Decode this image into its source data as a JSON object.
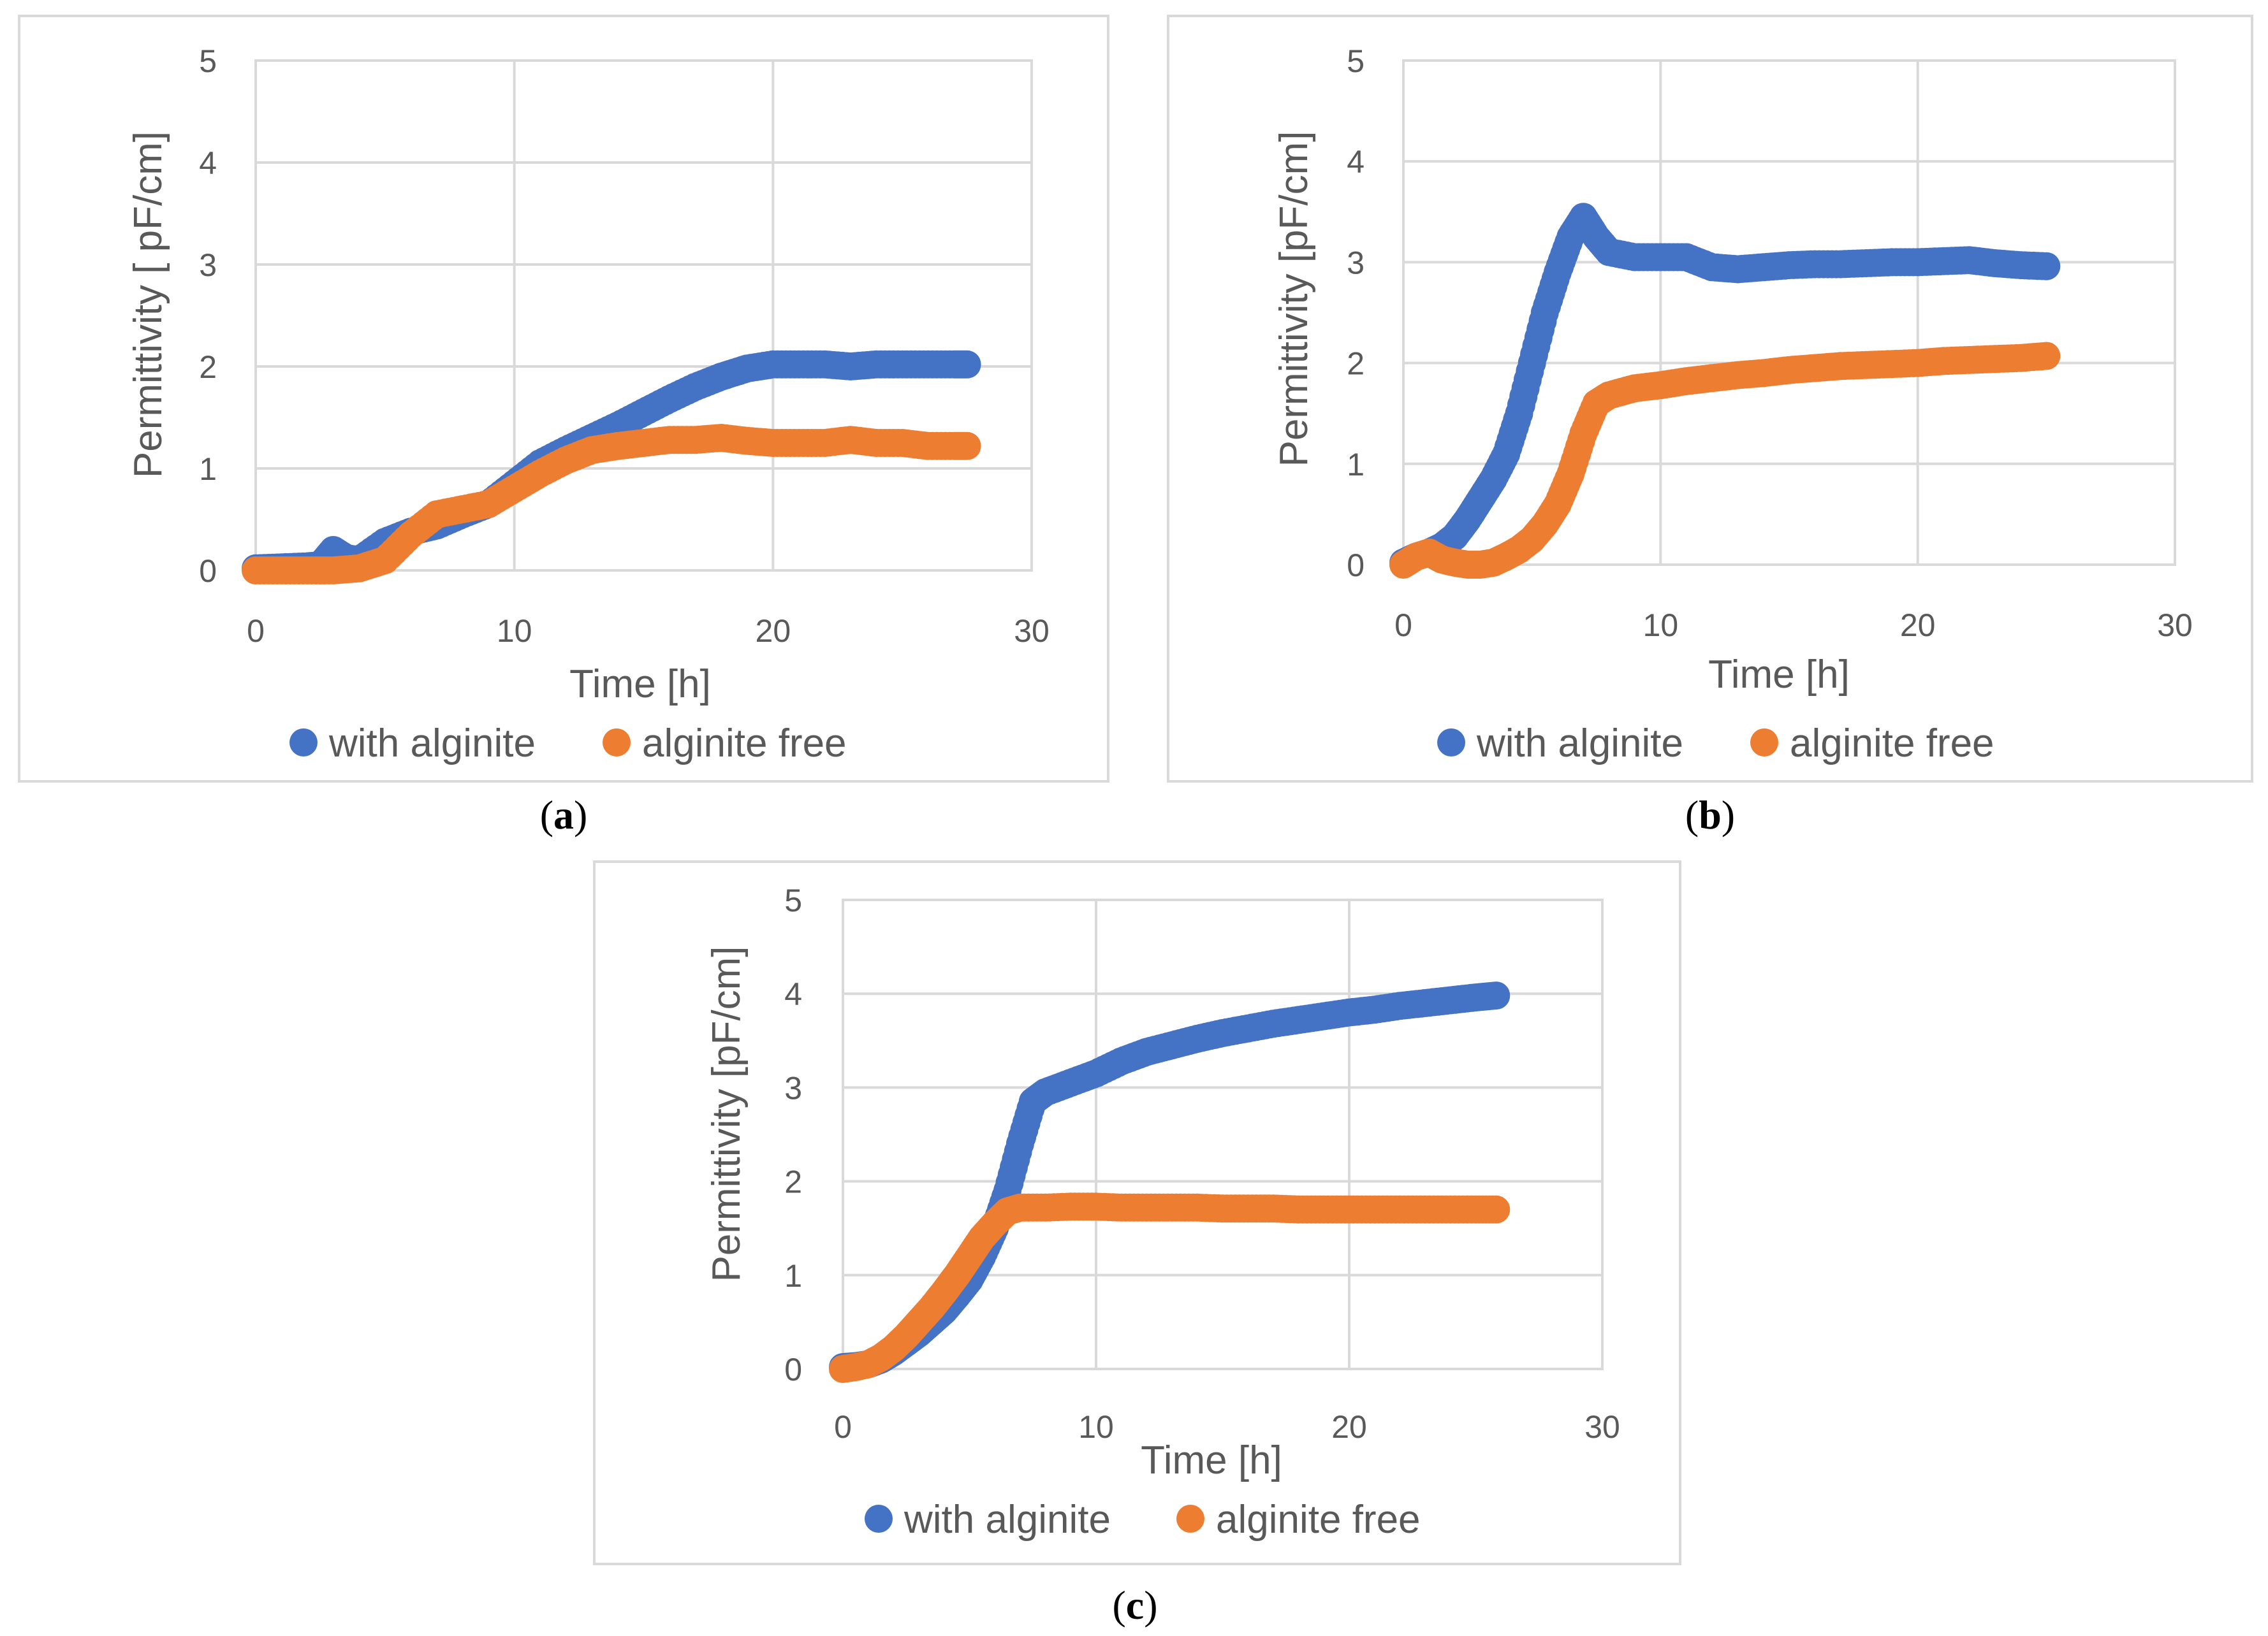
{
  "colors": {
    "with": "#4472C4",
    "free": "#ED7D31",
    "text": "#595959",
    "grid": "#D9D9D9"
  },
  "chart_data": [
    {
      "type": "scatter",
      "panel": "a",
      "caption_letter": "a",
      "xlabel": "Time [h]",
      "ylabel": "Permittivity [ pF/cm]",
      "xlim": [
        0,
        30
      ],
      "ylim": [
        0,
        5
      ],
      "xticks": [
        "0",
        "10",
        "20",
        "30"
      ],
      "yticks": [
        "0",
        "1",
        "2",
        "3",
        "4",
        "5"
      ],
      "legend_position": "bottom",
      "series": [
        {
          "name": "with alginite",
          "color": "#4472C4",
          "x": [
            0,
            1,
            2,
            2.5,
            3,
            3.5,
            4,
            5,
            6,
            7,
            8,
            9,
            10,
            11,
            12,
            13,
            14,
            15,
            16,
            17,
            18,
            19,
            20,
            21,
            22,
            23,
            24,
            25,
            26,
            27,
            27.5
          ],
          "y": [
            0.02,
            0.03,
            0.04,
            0.05,
            0.2,
            0.12,
            0.1,
            0.28,
            0.38,
            0.44,
            0.55,
            0.65,
            0.85,
            1.05,
            1.18,
            1.3,
            1.42,
            1.55,
            1.68,
            1.8,
            1.9,
            1.98,
            2.02,
            2.02,
            2.02,
            2.0,
            2.02,
            2.02,
            2.02,
            2.02,
            2.02
          ]
        },
        {
          "name": "alginite free",
          "color": "#ED7D31",
          "x": [
            0,
            1,
            2,
            3,
            4,
            5,
            6,
            7,
            8,
            9,
            10,
            11,
            12,
            13,
            14,
            15,
            16,
            17,
            18,
            19,
            20,
            21,
            22,
            23,
            24,
            25,
            26,
            27,
            27.5
          ],
          "y": [
            0,
            0,
            0,
            0,
            0.02,
            0.1,
            0.35,
            0.55,
            0.6,
            0.65,
            0.8,
            0.95,
            1.08,
            1.18,
            1.22,
            1.25,
            1.28,
            1.28,
            1.3,
            1.27,
            1.25,
            1.25,
            1.25,
            1.28,
            1.25,
            1.25,
            1.22,
            1.22,
            1.22
          ]
        }
      ]
    },
    {
      "type": "scatter",
      "panel": "b",
      "caption_letter": "b",
      "xlabel": "Time [h]",
      "ylabel": "Permittivity [pF/cm]",
      "xlim": [
        0,
        30
      ],
      "ylim": [
        0,
        5
      ],
      "xticks": [
        "0",
        "10",
        "20",
        "30"
      ],
      "yticks": [
        "0",
        "1",
        "2",
        "3",
        "4",
        "5"
      ],
      "legend_position": "bottom",
      "series": [
        {
          "name": "with alginite",
          "color": "#4472C4",
          "x": [
            0,
            0.5,
            1,
            1.5,
            2,
            2.5,
            3,
            3.5,
            4,
            4.5,
            5,
            5.5,
            6,
            6.5,
            7,
            7.5,
            8,
            9,
            10,
            11,
            12,
            13,
            14,
            15,
            16,
            17,
            18,
            19,
            20,
            21,
            22,
            23,
            24,
            25
          ],
          "y": [
            0.02,
            0.08,
            0.12,
            0.18,
            0.28,
            0.45,
            0.65,
            0.85,
            1.1,
            1.5,
            2.0,
            2.5,
            2.9,
            3.25,
            3.45,
            3.25,
            3.1,
            3.05,
            3.05,
            3.05,
            2.95,
            2.93,
            2.95,
            2.97,
            2.98,
            2.98,
            2.99,
            3.0,
            3.0,
            3.01,
            3.02,
            2.99,
            2.97,
            2.96
          ]
        },
        {
          "name": "alginite free",
          "color": "#ED7D31",
          "x": [
            0,
            0.5,
            1,
            1.5,
            2,
            2.5,
            3,
            3.5,
            4,
            4.5,
            5,
            5.5,
            6,
            6.5,
            7,
            7.5,
            8,
            9,
            10,
            11,
            12,
            13,
            14,
            15,
            16,
            17,
            18,
            19,
            20,
            21,
            22,
            23,
            24,
            25
          ],
          "y": [
            0.0,
            0.08,
            0.12,
            0.05,
            0.02,
            0.0,
            0.0,
            0.02,
            0.08,
            0.15,
            0.25,
            0.4,
            0.6,
            0.9,
            1.3,
            1.6,
            1.68,
            1.75,
            1.78,
            1.82,
            1.85,
            1.88,
            1.9,
            1.93,
            1.95,
            1.97,
            1.98,
            1.99,
            2.0,
            2.02,
            2.03,
            2.04,
            2.05,
            2.07
          ]
        }
      ]
    },
    {
      "type": "scatter",
      "panel": "c",
      "caption_letter": "c",
      "xlabel": "Time [h]",
      "ylabel": "Permittivity [pF/cm]",
      "xlim": [
        0,
        30
      ],
      "ylim": [
        0,
        5
      ],
      "xticks": [
        "0",
        "10",
        "20",
        "30"
      ],
      "yticks": [
        "0",
        "1",
        "2",
        "3",
        "4",
        "5"
      ],
      "legend_position": "bottom",
      "series": [
        {
          "name": "with alginite",
          "color": "#4472C4",
          "x": [
            0,
            0.5,
            1,
            1.5,
            2,
            2.5,
            3,
            3.5,
            4,
            4.5,
            5,
            5.5,
            6,
            6.5,
            7,
            7.5,
            8,
            9,
            10,
            11,
            12,
            13,
            14,
            15,
            16,
            17,
            18,
            19,
            20,
            21,
            22,
            23,
            24,
            25,
            25.8
          ],
          "y": [
            0.02,
            0.03,
            0.05,
            0.1,
            0.18,
            0.28,
            0.38,
            0.5,
            0.62,
            0.78,
            0.95,
            1.2,
            1.5,
            1.9,
            2.4,
            2.85,
            2.95,
            3.05,
            3.15,
            3.28,
            3.38,
            3.45,
            3.52,
            3.58,
            3.63,
            3.68,
            3.72,
            3.76,
            3.8,
            3.83,
            3.87,
            3.9,
            3.93,
            3.96,
            3.98
          ]
        },
        {
          "name": "alginite free",
          "color": "#ED7D31",
          "x": [
            0,
            0.5,
            1,
            1.5,
            2,
            2.5,
            3,
            3.5,
            4,
            4.5,
            5,
            5.5,
            6,
            6.5,
            7,
            8,
            9,
            10,
            11,
            12,
            13,
            14,
            15,
            16,
            17,
            18,
            19,
            20,
            21,
            22,
            23,
            24,
            25,
            25.8
          ],
          "y": [
            0.0,
            0.02,
            0.05,
            0.12,
            0.22,
            0.35,
            0.5,
            0.65,
            0.82,
            1.0,
            1.2,
            1.4,
            1.55,
            1.68,
            1.72,
            1.72,
            1.73,
            1.73,
            1.72,
            1.72,
            1.72,
            1.72,
            1.71,
            1.71,
            1.71,
            1.7,
            1.7,
            1.7,
            1.7,
            1.7,
            1.7,
            1.7,
            1.7,
            1.7
          ]
        }
      ]
    }
  ]
}
